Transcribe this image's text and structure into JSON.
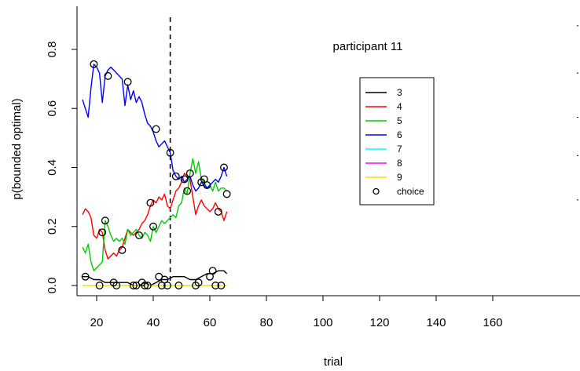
{
  "chart_data": {
    "type": "line",
    "title": "",
    "annotation": "participant 11",
    "xlabel": "trial",
    "ylabel": "p(bounded optimal)",
    "xlim": [
      15,
      165
    ],
    "ylim": [
      -0.02,
      0.95
    ],
    "x_ticks": [
      20,
      40,
      60,
      80,
      100,
      120,
      140,
      160
    ],
    "y_ticks": [
      0.0,
      0.2,
      0.4,
      0.6,
      0.8
    ],
    "x_tick_labels": [
      "20",
      "40",
      "60",
      "80",
      "100",
      "120",
      "140",
      "160"
    ],
    "y_tick_labels": [
      "0.0",
      "0.2",
      "0.4",
      "0.6",
      "0.8"
    ],
    "vline_x": 46,
    "legend_position": "right",
    "legend": [
      {
        "label": "3",
        "color": "#000000",
        "kind": "line"
      },
      {
        "label": "4",
        "color": "#ff0000",
        "kind": "line"
      },
      {
        "label": "5",
        "color": "#00cc00",
        "kind": "line"
      },
      {
        "label": "6",
        "color": "#0000ff",
        "kind": "line"
      },
      {
        "label": "7",
        "color": "#00ffff",
        "kind": "line"
      },
      {
        "label": "8",
        "color": "#ff00ff",
        "kind": "line"
      },
      {
        "label": "9",
        "color": "#e6e600",
        "kind": "line"
      },
      {
        "label": "choice",
        "color": "#000000",
        "kind": "circle"
      }
    ],
    "series": [
      {
        "name": "3",
        "color": "#000000",
        "x": [
          15,
          17,
          19,
          21,
          23,
          25,
          27,
          29,
          31,
          33,
          35,
          37,
          39,
          41,
          43,
          45,
          47,
          49,
          51,
          53,
          55,
          57,
          59,
          61,
          63,
          65,
          66
        ],
        "y": [
          0.03,
          0.03,
          0.02,
          0.02,
          0.01,
          0.01,
          0.01,
          0.01,
          0.01,
          0.0,
          0.0,
          0.01,
          0.0,
          0.01,
          0.02,
          0.02,
          0.03,
          0.03,
          0.03,
          0.02,
          0.02,
          0.03,
          0.04,
          0.04,
          0.05,
          0.05,
          0.04
        ]
      },
      {
        "name": "4",
        "color": "#ff0000",
        "x": [
          15,
          16,
          17,
          18,
          19,
          20,
          21,
          22,
          23,
          24,
          25,
          26,
          27,
          28,
          29,
          30,
          31,
          32,
          33,
          34,
          35,
          36,
          37,
          38,
          39,
          40,
          41,
          42,
          43,
          44,
          45,
          46,
          47,
          48,
          49,
          50,
          51,
          52,
          53,
          54,
          55,
          56,
          57,
          58,
          59,
          60,
          61,
          62,
          63,
          64,
          65,
          66
        ],
        "y": [
          0.24,
          0.26,
          0.25,
          0.23,
          0.17,
          0.16,
          0.19,
          0.18,
          0.12,
          0.09,
          0.1,
          0.11,
          0.1,
          0.12,
          0.13,
          0.16,
          0.19,
          0.18,
          0.17,
          0.18,
          0.19,
          0.21,
          0.22,
          0.24,
          0.27,
          0.29,
          0.28,
          0.3,
          0.29,
          0.31,
          0.27,
          0.26,
          0.29,
          0.32,
          0.33,
          0.35,
          0.38,
          0.37,
          0.36,
          0.3,
          0.24,
          0.27,
          0.29,
          0.27,
          0.26,
          0.25,
          0.26,
          0.28,
          0.26,
          0.25,
          0.22,
          0.25
        ]
      },
      {
        "name": "5",
        "color": "#00cc00",
        "x": [
          15,
          16,
          17,
          18,
          19,
          20,
          21,
          22,
          23,
          24,
          25,
          26,
          27,
          28,
          29,
          30,
          31,
          32,
          33,
          34,
          35,
          36,
          37,
          38,
          39,
          40,
          41,
          42,
          43,
          44,
          45,
          46,
          47,
          48,
          49,
          50,
          51,
          52,
          53,
          54,
          55,
          56,
          57,
          58,
          59,
          60,
          61,
          62,
          63,
          64,
          65,
          66
        ],
        "y": [
          0.13,
          0.11,
          0.14,
          0.08,
          0.05,
          0.06,
          0.07,
          0.08,
          0.22,
          0.2,
          0.17,
          0.15,
          0.16,
          0.15,
          0.16,
          0.14,
          0.19,
          0.17,
          0.18,
          0.19,
          0.17,
          0.16,
          0.18,
          0.17,
          0.15,
          0.2,
          0.18,
          0.2,
          0.22,
          0.21,
          0.22,
          0.23,
          0.24,
          0.23,
          0.27,
          0.28,
          0.33,
          0.31,
          0.38,
          0.43,
          0.38,
          0.42,
          0.36,
          0.35,
          0.33,
          0.34,
          0.32,
          0.35,
          0.32,
          0.33,
          0.33,
          0.32
        ]
      },
      {
        "name": "6",
        "color": "#0000ff",
        "x": [
          15,
          16,
          17,
          18,
          19,
          20,
          21,
          22,
          23,
          24,
          25,
          26,
          27,
          28,
          29,
          30,
          31,
          32,
          33,
          34,
          35,
          36,
          37,
          38,
          39,
          40,
          41,
          42,
          43,
          44,
          45,
          46,
          47,
          48,
          49,
          50,
          51,
          52,
          53,
          54,
          55,
          56,
          57,
          58,
          59,
          60,
          61,
          62,
          63,
          64,
          65,
          66
        ],
        "y": [
          0.63,
          0.6,
          0.57,
          0.67,
          0.75,
          0.74,
          0.72,
          0.62,
          0.71,
          0.73,
          0.74,
          0.73,
          0.72,
          0.71,
          0.7,
          0.61,
          0.68,
          0.63,
          0.66,
          0.62,
          0.64,
          0.62,
          0.58,
          0.55,
          0.54,
          0.52,
          0.49,
          0.47,
          0.48,
          0.49,
          0.47,
          0.45,
          0.39,
          0.37,
          0.36,
          0.37,
          0.35,
          0.36,
          0.37,
          0.34,
          0.32,
          0.33,
          0.35,
          0.34,
          0.33,
          0.34,
          0.35,
          0.36,
          0.35,
          0.37,
          0.4,
          0.37
        ]
      },
      {
        "name": "9",
        "color": "#e6e600",
        "x": [
          15,
          30,
          45,
          60,
          66
        ],
        "y": [
          0.0,
          0.0,
          0.0,
          0.0,
          0.0
        ]
      }
    ],
    "choice_points": {
      "x": [
        16,
        19,
        21,
        22,
        23,
        24,
        26,
        27,
        29,
        31,
        33,
        34,
        35,
        36,
        37,
        38,
        39,
        40,
        41,
        42,
        43,
        44,
        45,
        46,
        48,
        49,
        51,
        52,
        53,
        55,
        56,
        57,
        58,
        59,
        60,
        61,
        62,
        63,
        64,
        65,
        66
      ],
      "y": [
        0.03,
        0.75,
        0.0,
        0.18,
        0.22,
        0.71,
        0.01,
        0.0,
        0.12,
        0.69,
        0.0,
        0.0,
        0.17,
        0.01,
        0.0,
        0.0,
        0.28,
        0.2,
        0.53,
        0.03,
        0.0,
        0.02,
        0.0,
        0.45,
        0.37,
        0.0,
        0.36,
        0.32,
        0.38,
        0.0,
        0.01,
        0.35,
        0.36,
        0.34,
        0.03,
        0.05,
        0.0,
        0.25,
        0.0,
        0.4,
        0.31
      ]
    },
    "right_margin_marks": [
      0.88,
      0.72,
      0.57,
      0.44,
      0.29
    ]
  }
}
